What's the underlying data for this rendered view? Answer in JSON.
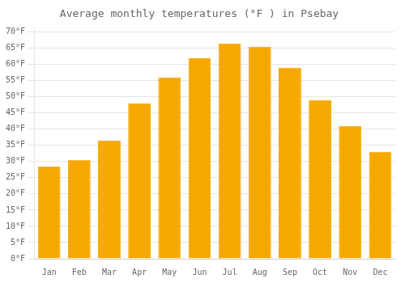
{
  "chart_data": {
    "type": "bar",
    "title": "Average monthly temperatures (°F ) in Psebay",
    "categories": [
      "Jan",
      "Feb",
      "Mar",
      "Apr",
      "May",
      "Jun",
      "Jul",
      "Aug",
      "Sep",
      "Oct",
      "Nov",
      "Dec"
    ],
    "values": [
      28.5,
      30.5,
      36.5,
      48.0,
      56.0,
      62.0,
      66.5,
      65.5,
      59.0,
      49.0,
      41.0,
      33.0
    ],
    "color": "#F5A800",
    "ylim": [
      0,
      71
    ],
    "yticks": [
      {
        "value": 0,
        "label": "0°F"
      },
      {
        "value": 5,
        "label": "5°F"
      },
      {
        "value": 10,
        "label": "10°F"
      },
      {
        "value": 15,
        "label": "15°F"
      },
      {
        "value": 20,
        "label": "20°F"
      },
      {
        "value": 25,
        "label": "25°F"
      },
      {
        "value": 30,
        "label": "30°F"
      },
      {
        "value": 35,
        "label": "35°F"
      },
      {
        "value": 40,
        "label": "40°F"
      },
      {
        "value": 45,
        "label": "45°F"
      },
      {
        "value": 50,
        "label": "50°F"
      },
      {
        "value": 55,
        "label": "55°F"
      },
      {
        "value": 60,
        "label": "60°F"
      },
      {
        "value": 65,
        "label": "65°F"
      },
      {
        "value": 70,
        "label": "70°F"
      }
    ],
    "grid": true
  }
}
